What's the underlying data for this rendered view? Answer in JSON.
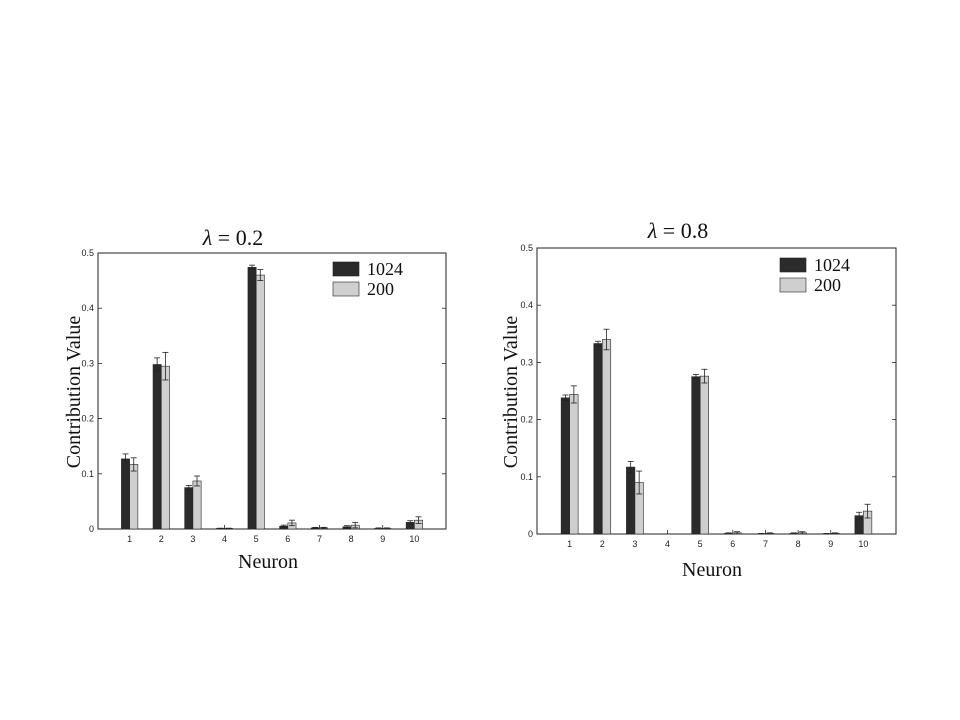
{
  "chart_data": [
    {
      "type": "bar",
      "title": "λ = 0.2",
      "title_symbol": "λ",
      "title_rest": " = 0.2",
      "xlabel": "Neuron",
      "ylabel": "Contribution Value",
      "ylim": [
        0,
        0.5
      ],
      "yticks": [
        0,
        0.1,
        0.2,
        0.3,
        0.4,
        0.5
      ],
      "categories": [
        "1",
        "2",
        "3",
        "4",
        "5",
        "6",
        "7",
        "8",
        "9",
        "10"
      ],
      "legend_position": "top-right",
      "series": [
        {
          "name": "1024",
          "color": "#2b2b2b",
          "values": [
            0.127,
            0.298,
            0.075,
            0.001,
            0.474,
            0.005,
            0.002,
            0.004,
            0.001,
            0.012
          ],
          "errors": [
            0.009,
            0.012,
            0.004,
            0.0005,
            0.004,
            0.002,
            0.001,
            0.002,
            0.001,
            0.003
          ]
        },
        {
          "name": "200",
          "color": "#cfcfcf",
          "values": [
            0.117,
            0.295,
            0.087,
            0.001,
            0.46,
            0.011,
            0.002,
            0.007,
            0.001,
            0.016
          ],
          "errors": [
            0.012,
            0.025,
            0.009,
            0.0005,
            0.01,
            0.005,
            0.001,
            0.005,
            0.001,
            0.006
          ]
        }
      ]
    },
    {
      "type": "bar",
      "title": "λ = 0.8",
      "title_symbol": "λ",
      "title_rest": " = 0.8",
      "xlabel": "Neuron",
      "ylabel": "Contribution Value",
      "ylim": [
        0,
        0.5
      ],
      "yticks": [
        0,
        0.1,
        0.2,
        0.3,
        0.4,
        0.5
      ],
      "categories": [
        "1",
        "2",
        "3",
        "4",
        "5",
        "6",
        "7",
        "8",
        "9",
        "10"
      ],
      "legend_position": "top-right",
      "series": [
        {
          "name": "1024",
          "color": "#2b2b2b",
          "values": [
            0.238,
            0.333,
            0.117,
            0.0,
            0.275,
            0.001,
            0.0005,
            0.001,
            0.0005,
            0.032
          ],
          "errors": [
            0.005,
            0.004,
            0.01,
            0.0,
            0.004,
            0.001,
            0.0005,
            0.001,
            0.0005,
            0.006
          ]
        },
        {
          "name": "200",
          "color": "#cfcfcf",
          "values": [
            0.244,
            0.34,
            0.09,
            0.0,
            0.276,
            0.002,
            0.001,
            0.002,
            0.001,
            0.04
          ],
          "errors": [
            0.015,
            0.018,
            0.02,
            0.0,
            0.012,
            0.002,
            0.001,
            0.002,
            0.001,
            0.012
          ]
        }
      ]
    }
  ]
}
